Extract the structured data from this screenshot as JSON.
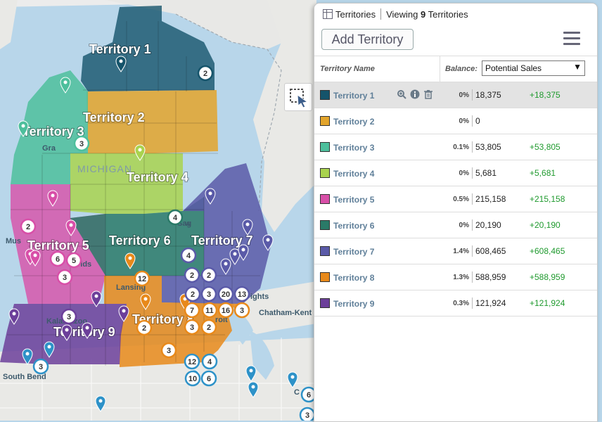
{
  "header": {
    "tab_label": "Territories",
    "viewing_prefix": "Viewing ",
    "viewing_count": "9",
    "viewing_suffix": " Territories"
  },
  "toolbar": {
    "add_label": "Add Territory",
    "menu_icon": "hamburger-menu-icon"
  },
  "table": {
    "col_name": "Territory Name",
    "col_balance": "Balance:",
    "balance_selected": "Potential Sales"
  },
  "territories": [
    {
      "name": "Territory 1",
      "color": "#15546b",
      "pct": "0%",
      "value": "18,375",
      "change": "+18,375"
    },
    {
      "name": "Territory 2",
      "color": "#e3a52c",
      "pct": "0%",
      "value": "0",
      "change": ""
    },
    {
      "name": "Territory 3",
      "color": "#4dbf9c",
      "pct": "0.1%",
      "value": "53,805",
      "change": "+53,805"
    },
    {
      "name": "Territory 4",
      "color": "#a9d34f",
      "pct": "0%",
      "value": "5,681",
      "change": "+5,681"
    },
    {
      "name": "Territory 5",
      "color": "#d84fa8",
      "pct": "0.5%",
      "value": "215,158",
      "change": "+215,158"
    },
    {
      "name": "Territory 6",
      "color": "#2a7a68",
      "pct": "0%",
      "value": "20,190",
      "change": "+20,190"
    },
    {
      "name": "Territory 7",
      "color": "#5a5aa8",
      "pct": "1.4%",
      "value": "608,465",
      "change": "+608,465"
    },
    {
      "name": "Territory 8",
      "color": "#e8891a",
      "pct": "1.3%",
      "value": "588,959",
      "change": "+588,959"
    },
    {
      "name": "Territory 9",
      "color": "#6c3f9a",
      "pct": "0.3%",
      "value": "121,924",
      "change": "+121,924"
    }
  ],
  "map": {
    "state_label": "MICHIGAN",
    "cities": [
      "Muskegon",
      "Grand Rapids",
      "Lansing",
      "Kalamazoo",
      "Detroit",
      "South Bend",
      "Chatham-Kent",
      "Saginaw",
      "Sterling Heights"
    ],
    "city_display": {
      "muskegon": "Mus",
      "grand_rapids": "rids",
      "grand_rapids_prefix": "Gra",
      "lansing": "Lansing",
      "kalamazoo": "Kalamazoo",
      "detroit": "roit",
      "south_bend": "South Bend",
      "chatham": "Chatham-Kent",
      "saginaw": "Sag",
      "saginaw_tail": "w",
      "heights": "ights",
      "chicago_fragment": "C"
    },
    "territory_labels": [
      "Territory 1",
      "Territory 2",
      "Territory 3",
      "Territory 4",
      "Territory 5",
      "Territory 6",
      "Territory 7",
      "Territory 8",
      "Territory 9"
    ],
    "clusters": [
      "2",
      "3",
      "4",
      "2",
      "6",
      "5",
      "3",
      "4",
      "2",
      "2",
      "12",
      "2",
      "3",
      "20",
      "13",
      "7",
      "11",
      "16",
      "3",
      "3",
      "2",
      "3",
      "2",
      "3",
      "3",
      "12",
      "4",
      "10",
      "6",
      "6",
      "3"
    ]
  }
}
